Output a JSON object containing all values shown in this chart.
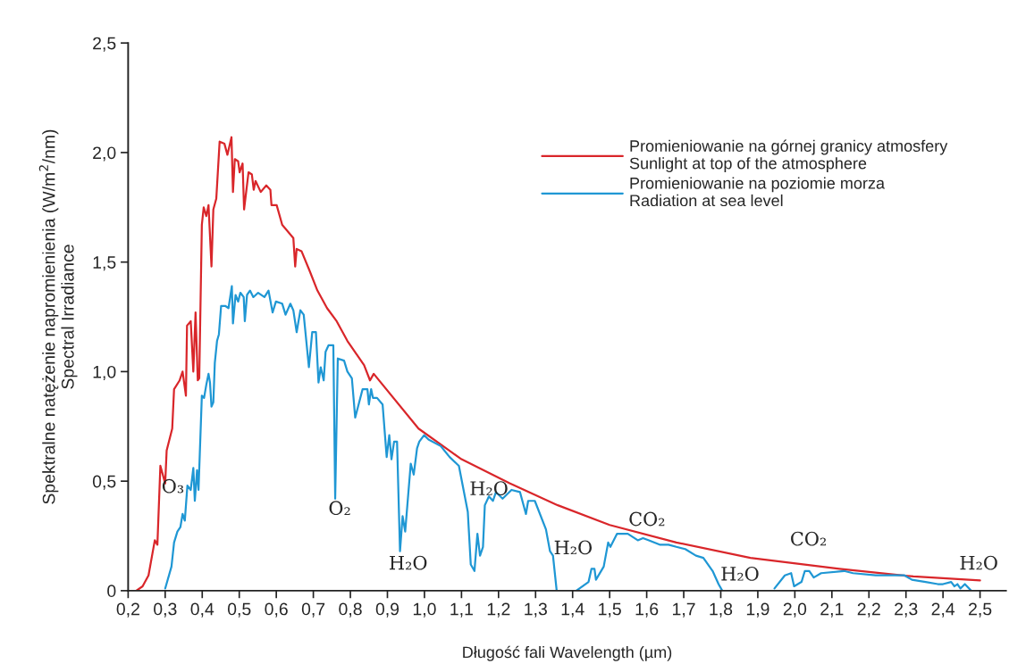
{
  "chart_data": {
    "type": "line",
    "xlabel": "Długość fali Wavelength (µm)",
    "ylabel": "Spektralne natężenie napromienienia (W/m$^{2}$/nm)\nSpectral Irradiance",
    "xlim": [
      0.2,
      2.57
    ],
    "ylim": [
      0,
      2.5
    ],
    "xticks": [
      {
        "value": 0.2,
        "label": "0,2"
      },
      {
        "value": 0.3,
        "label": "0,3"
      },
      {
        "value": 0.4,
        "label": "0,4"
      },
      {
        "value": 0.5,
        "label": "0,5"
      },
      {
        "value": 0.6,
        "label": "0,6"
      },
      {
        "value": 0.7,
        "label": "0,7"
      },
      {
        "value": 0.8,
        "label": "0,8"
      },
      {
        "value": 0.9,
        "label": "0,9"
      },
      {
        "value": 1.0,
        "label": "1,0"
      },
      {
        "value": 1.1,
        "label": "1,1"
      },
      {
        "value": 1.2,
        "label": "1,2"
      },
      {
        "value": 1.3,
        "label": "1,3"
      },
      {
        "value": 1.4,
        "label": "1,4"
      },
      {
        "value": 1.5,
        "label": "1,5"
      },
      {
        "value": 1.6,
        "label": "1,6"
      },
      {
        "value": 1.7,
        "label": "1,7"
      },
      {
        "value": 1.8,
        "label": "1,8"
      },
      {
        "value": 1.9,
        "label": "1,9"
      },
      {
        "value": 2.0,
        "label": "2,0"
      },
      {
        "value": 2.1,
        "label": "2,1"
      },
      {
        "value": 2.2,
        "label": "2,2"
      },
      {
        "value": 2.3,
        "label": "2,3"
      },
      {
        "value": 2.4,
        "label": "2,4"
      },
      {
        "value": 2.5,
        "label": "2,5"
      }
    ],
    "yticks": [
      0,
      {
        "value": 0.5,
        "label": "0,5"
      },
      {
        "value": 1.0,
        "label": "1,0"
      },
      {
        "value": 1.5,
        "label": "1,5"
      },
      {
        "value": 2.0,
        "label": "2,0"
      },
      {
        "value": 2.5,
        "label": "2,5"
      }
    ],
    "grid": false,
    "legend": "top right",
    "marker": "none",
    "line_style": "solid",
    "series": [
      {
        "name": "Promieniowanie na górnej granicy atmosfery\nSunlight at top of the atmosphere",
        "color": "#d9262a",
        "x": [
          0.222,
          0.239,
          0.255,
          0.272,
          0.279,
          0.287,
          0.3,
          0.304,
          0.319,
          0.324,
          0.339,
          0.347,
          0.356,
          0.359,
          0.369,
          0.376,
          0.382,
          0.388,
          0.392,
          0.399,
          0.404,
          0.411,
          0.417,
          0.425,
          0.43,
          0.438,
          0.447,
          0.46,
          0.468,
          0.479,
          0.483,
          0.488,
          0.497,
          0.501,
          0.509,
          0.513,
          0.525,
          0.534,
          0.539,
          0.544,
          0.558,
          0.573,
          0.584,
          0.587,
          0.601,
          0.616,
          0.646,
          0.651,
          0.655,
          0.668,
          0.69,
          0.711,
          0.737,
          0.763,
          0.792,
          0.837,
          0.853,
          0.863,
          0.984,
          1.1,
          1.23,
          1.36,
          1.5,
          1.68,
          1.88,
          2.12,
          2.32,
          2.5
        ],
        "values": [
          0,
          0.02,
          0.07,
          0.23,
          0.21,
          0.57,
          0.49,
          0.64,
          0.74,
          0.92,
          0.96,
          1.0,
          0.89,
          1.21,
          1.23,
          1.0,
          1.27,
          0.96,
          0.97,
          1.67,
          1.75,
          1.71,
          1.76,
          1.48,
          1.74,
          1.79,
          2.05,
          2.04,
          1.99,
          2.07,
          1.82,
          1.97,
          1.96,
          1.91,
          1.95,
          1.74,
          1.91,
          1.9,
          1.83,
          1.87,
          1.82,
          1.85,
          1.83,
          1.76,
          1.76,
          1.67,
          1.61,
          1.48,
          1.56,
          1.55,
          1.46,
          1.37,
          1.29,
          1.23,
          1.14,
          1.03,
          0.96,
          0.99,
          0.74,
          0.6,
          0.49,
          0.39,
          0.3,
          0.22,
          0.15,
          0.1,
          0.065,
          0.047
        ]
      },
      {
        "name": "Promieniowanie na poziomie morza\nRadiation at sea level",
        "color": "#1f97d4",
        "x": [
          0.3,
          0.317,
          0.324,
          0.333,
          0.341,
          0.347,
          0.353,
          0.36,
          0.369,
          0.376,
          0.38,
          0.386,
          0.39,
          0.399,
          0.405,
          0.411,
          0.417,
          0.421,
          0.425,
          0.43,
          0.434,
          0.44,
          0.445,
          0.451,
          0.462,
          0.471,
          0.48,
          0.483,
          0.49,
          0.497,
          0.503,
          0.512,
          0.515,
          0.521,
          0.529,
          0.538,
          0.551,
          0.568,
          0.579,
          0.59,
          0.599,
          0.616,
          0.625,
          0.638,
          0.646,
          0.655,
          0.665,
          0.674,
          0.688,
          0.697,
          0.707,
          0.714,
          0.72,
          0.728,
          0.733,
          0.741,
          0.754,
          0.759,
          0.766,
          0.783,
          0.792,
          0.804,
          0.813,
          0.833,
          0.846,
          0.85,
          0.856,
          0.861,
          0.872,
          0.887,
          0.898,
          0.905,
          0.911,
          0.918,
          0.926,
          0.934,
          0.941,
          0.948,
          0.963,
          0.971,
          0.98,
          0.986,
          0.999,
          1.011,
          1.044,
          1.068,
          1.093,
          1.117,
          1.125,
          1.135,
          1.143,
          1.15,
          1.158,
          1.163,
          1.174,
          1.185,
          1.193,
          1.211,
          1.235,
          1.258,
          1.274,
          1.28,
          1.298,
          1.328,
          1.339,
          1.347,
          1.357,
          1.39,
          1.41,
          1.443,
          1.451,
          1.459,
          1.463,
          1.484,
          1.496,
          1.502,
          1.52,
          1.549,
          1.576,
          1.59,
          1.606,
          1.635,
          1.659,
          1.68,
          1.704,
          1.733,
          1.753,
          1.778,
          1.794,
          1.804,
          1.87,
          1.945,
          1.973,
          1.99,
          1.998,
          2.018,
          2.027,
          2.039,
          2.051,
          2.071,
          2.133,
          2.157,
          2.218,
          2.296,
          2.316,
          2.353,
          2.386,
          2.4,
          2.422,
          2.431,
          2.439,
          2.447,
          2.459,
          2.476
        ],
        "values": [
          0.01,
          0.11,
          0.22,
          0.27,
          0.29,
          0.35,
          0.32,
          0.48,
          0.46,
          0.56,
          0.41,
          0.55,
          0.46,
          0.89,
          0.88,
          0.94,
          0.99,
          0.95,
          0.84,
          0.86,
          1.04,
          1.14,
          1.17,
          1.3,
          1.3,
          1.29,
          1.39,
          1.22,
          1.35,
          1.32,
          1.36,
          1.34,
          1.23,
          1.35,
          1.37,
          1.34,
          1.36,
          1.34,
          1.37,
          1.27,
          1.32,
          1.31,
          1.26,
          1.31,
          1.28,
          1.18,
          1.28,
          1.26,
          1.02,
          1.18,
          1.18,
          0.95,
          1.02,
          0.96,
          1.09,
          1.12,
          1.12,
          0.42,
          1.06,
          1.05,
          1.0,
          0.97,
          0.79,
          0.92,
          0.92,
          0.85,
          0.92,
          0.88,
          0.88,
          0.85,
          0.61,
          0.71,
          0.6,
          0.68,
          0.68,
          0.18,
          0.34,
          0.27,
          0.58,
          0.53,
          0.65,
          0.68,
          0.71,
          0.69,
          0.66,
          0.61,
          0.57,
          0.36,
          0.12,
          0.09,
          0.26,
          0.16,
          0.2,
          0.39,
          0.43,
          0.41,
          0.45,
          0.42,
          0.46,
          0.45,
          0.35,
          0.41,
          0.41,
          0.28,
          0.18,
          0.16,
          0.0,
          null,
          0.0,
          0.04,
          0.1,
          0.1,
          0.05,
          0.11,
          0.22,
          0.2,
          0.26,
          0.26,
          0.23,
          0.24,
          0.23,
          0.21,
          0.21,
          0.2,
          0.19,
          0.16,
          0.15,
          0.09,
          0.03,
          0.0,
          null,
          0.01,
          0.07,
          0.08,
          0.02,
          0.04,
          0.09,
          0.09,
          0.06,
          0.08,
          0.09,
          0.08,
          0.07,
          0.07,
          0.05,
          0.04,
          0.03,
          0.03,
          0.04,
          0.02,
          0.03,
          0.01,
          0.03,
          0.0
        ]
      }
    ],
    "annotations": [
      "O₃",
      "O₂",
      "H₂O",
      "H₂O",
      "H₂O",
      "CO₂",
      "H₂O",
      "CO₂",
      "H₂O"
    ]
  }
}
